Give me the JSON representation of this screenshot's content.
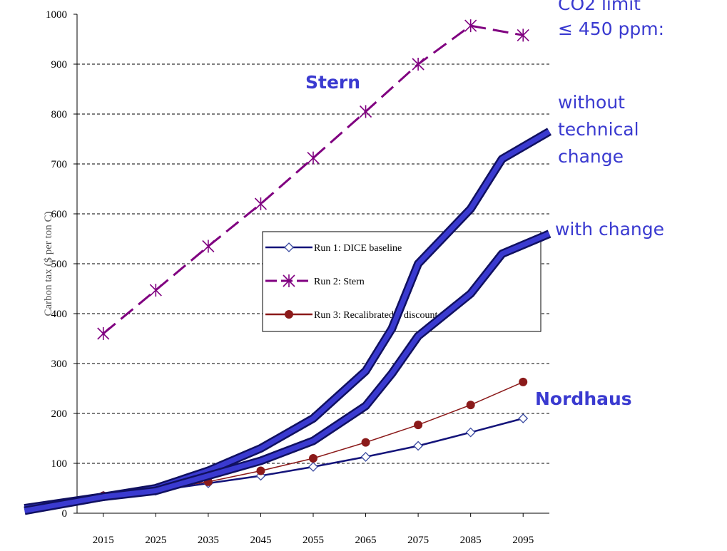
{
  "chart_data": {
    "type": "line",
    "y_label": "Carbon tax ($ per ton C)",
    "xlim": [
      2010,
      2100
    ],
    "xticks": [
      2015,
      2025,
      2035,
      2045,
      2055,
      2065,
      2075,
      2085,
      2095
    ],
    "ylim": [
      0,
      1000
    ],
    "yticks": [
      0,
      100,
      200,
      300,
      400,
      500,
      600,
      700,
      800,
      900,
      1000
    ],
    "grid": true,
    "x": [
      2015,
      2025,
      2035,
      2045,
      2055,
      2065,
      2075,
      2085,
      2095
    ],
    "series": [
      {
        "name": "Run 1: DICE baseline",
        "color": "#14147a",
        "marker": "diamond",
        "values": [
          35,
          45,
          60,
          75,
          93,
          113,
          135,
          162,
          190
        ]
      },
      {
        "name": "Run 2: Stern",
        "color": "#800080",
        "marker": "star",
        "dashed": true,
        "values": [
          360,
          447,
          535,
          620,
          712,
          805,
          900,
          977,
          958
        ]
      },
      {
        "name": "Run 3: Recalibrated 0 discount",
        "color": "#8b1a1a",
        "marker": "circle",
        "values": [
          35,
          47,
          63,
          85,
          110,
          142,
          177,
          217,
          263
        ]
      }
    ],
    "overlay_lines": [
      {
        "color": "#3a3ad0",
        "x": [
          2000,
          2015,
          2025,
          2035,
          2045,
          2055,
          2065,
          2070,
          2075,
          2085,
          2091,
          2100
        ],
        "values": [
          10,
          33,
          50,
          85,
          130,
          190,
          285,
          370,
          500,
          610,
          710,
          765
        ]
      },
      {
        "color": "#3a3ad0",
        "x": [
          2000,
          2015,
          2025,
          2035,
          2045,
          2055,
          2065,
          2070,
          2075,
          2085,
          2091,
          2100
        ],
        "values": [
          5,
          33,
          45,
          75,
          105,
          145,
          215,
          280,
          355,
          440,
          520,
          560
        ]
      }
    ],
    "annotations": [
      {
        "lines": [
          "CO2 limit",
          "≤ 450 ppm:"
        ]
      },
      {
        "lines": [
          "Stern"
        ]
      },
      {
        "lines": [
          "without",
          "technical",
          "change"
        ]
      },
      {
        "lines": [
          "with change"
        ]
      },
      {
        "lines": [
          "Nordhaus"
        ]
      }
    ]
  }
}
